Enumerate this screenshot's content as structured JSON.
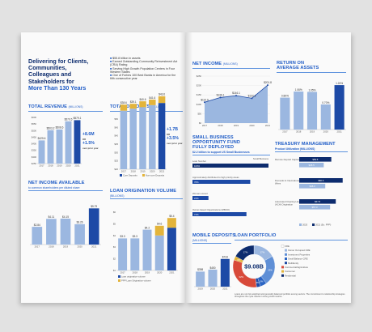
{
  "intro": {
    "title_l1": "Delivering for Clients,",
    "title_l2": "Communities,",
    "title_l3": "Colleagues and",
    "title_l4": "Stakeholders for",
    "title_l5": "More Than 130 Years",
    "bullets": [
      "$55.8 billion in assets",
      "Earned Outstanding Community Reinvestment Act (CRA) Rating",
      "Serving High Growth Population Centers in Four Western States",
      "One of Forbes 100 Best Banks in America for the fifth consecutive year"
    ]
  },
  "colors": {
    "navy": "#0d2c6e",
    "accent": "#1e5bc6",
    "bar": "#9bb7e0",
    "bar_dark": "#1d4aa6",
    "gold": "#e3b43b",
    "red": "#d84a3a"
  },
  "revenue": {
    "title": "TOTAL REVENUE",
    "unit": "(MILLIONS)",
    "stat": "+8.6M",
    "stat2": "+1.5%",
    "stat_note": "over prior year",
    "or": "OR"
  },
  "deposits": {
    "title": "TOTAL DEPOSITS",
    "unit": "(BILLIONS)",
    "stat": "+1.7B",
    "stat2": "+3.5%",
    "stat_note": "over prior year",
    "or": "OR",
    "legend1": "Core Deposits",
    "legend2": "Non-core Deposits"
  },
  "netinc_avail": {
    "title": "NET INCOME AVAILABLE",
    "subtitle": "to common shareholders per diluted share"
  },
  "loan_orig": {
    "title": "LOAN ORIGINATION VOLUME",
    "unit": "(BILLIONS)",
    "legend1": "Loan origination volume",
    "legend2": "PPP Loan Origination volume"
  },
  "net_income": {
    "title": "NET INCOME",
    "unit": "(MILLIONS)"
  },
  "roaa": {
    "title_l1": "RETURN ON",
    "title_l2": "AVERAGE ASSETS"
  },
  "sbof": {
    "title_l1": "SMALL BUSINESS",
    "title_l2": "OPPORTUNITY FUND",
    "title_l3": "FULLY DEPLOYED",
    "subtitle": "$2.2 billion to support US Small Businesses"
  },
  "treasury": {
    "title": "TREASURY MANAGEMENT",
    "subtitle": "Product Utilization",
    "unit": "(MILLIONS)"
  },
  "mobile": {
    "title": "MOBILE DEPOSITS",
    "unit": "(MILLIONS)"
  },
  "portfolio": {
    "title": "LOAN PORTFOLIO",
    "total": "$9.08B",
    "legend": [
      "CRE",
      "Owner Occupied CRE",
      "Investment Properties",
      "Small Balance CRE",
      "Multifamily",
      "Commercial/Agriculture",
      "Consumer",
      "Residential"
    ],
    "footnote": "Loans are not risk weighted and generally balanced portfolio among sectors. The commitment to relationship strategies throughout the cycle results in strong credit metrics."
  },
  "chart_data": [
    {
      "type": "bar",
      "title": "TOTAL REVENUE",
      "categories": [
        "2017",
        "2018",
        "2019",
        "2020",
        "2021"
      ],
      "values": [
        425.6,
        503.2,
        508.6,
        570.5,
        579.1
      ],
      "value_labels": [
        "$425.6",
        "$503.2",
        "$508.6",
        "$570.5",
        "$579.1"
      ],
      "y_ticks": [
        "$600",
        "$550",
        "$500",
        "$450",
        "$400",
        "$350",
        "$300",
        "$250"
      ]
    },
    {
      "type": "bar",
      "title": "TOTAL DEPOSITS",
      "categories": [
        "2017",
        "2018",
        "2019",
        "2020",
        "2021"
      ],
      "series": [
        {
          "name": "Core Deposits",
          "values": [
            35.0,
            36.2,
            37.1,
            38.3,
            39.6
          ]
        },
        {
          "name": "Non-core Deposits",
          "values": [
            3.6,
            2.9,
            3.5,
            3.3,
            4.0
          ]
        }
      ],
      "value_labels": [
        "$38.6",
        "$39.1",
        "$40.6",
        "$41.6",
        "$43.6"
      ],
      "y_ticks": [
        "$50",
        "$45",
        "$40",
        "$35",
        "$30",
        "$25",
        "$20"
      ]
    },
    {
      "type": "bar",
      "title": "NET INCOME AVAILABLE",
      "categories": [
        "2017",
        "2018",
        "2019",
        "2020",
        "2021"
      ],
      "values": [
        2.84,
        4.11,
        4.15,
        3.26,
        5.79
      ],
      "value_labels": [
        "$2.84",
        "$4.11",
        "$4.15",
        "$3.26",
        "$5.79"
      ]
    },
    {
      "type": "bar",
      "title": "LOAN ORIGINATION VOLUME",
      "categories": [
        "2017",
        "2018",
        "2019",
        "2020",
        "2021"
      ],
      "series": [
        {
          "name": "Loan origination volume",
          "values": [
            3.3,
            3.3,
            4.2,
            3.6,
            4.4
          ]
        },
        {
          "name": "PPP Loan Origination volume",
          "values": [
            0,
            0,
            0,
            1.0,
            1.0
          ]
        }
      ],
      "value_labels": [
        "$3.3",
        "$3.3",
        "$4.2",
        "$4.6",
        "$5.4"
      ],
      "y_ticks": [
        "$6",
        "$5",
        "$4",
        "$3",
        "$2",
        "$1"
      ]
    },
    {
      "type": "area",
      "title": "NET INCOME",
      "categories": [
        "2017",
        "2018",
        "2019",
        "2020",
        "2021"
      ],
      "values": [
        110.9,
        136.1,
        146.1,
        132.1,
        201.8
      ],
      "value_labels": [
        "$110.9",
        "$136.1",
        "$146.1",
        "$132.1",
        "$201.8"
      ],
      "y_ticks": [
        "$250",
        "$200",
        "$150",
        "$100",
        "$50",
        "$0"
      ]
    },
    {
      "type": "bar",
      "title": "RETURN ON AVERAGE ASSETS",
      "categories": [
        "2017",
        "2018",
        "2019",
        "2020",
        "2021"
      ],
      "values": [
        0.89,
        1.06,
        1.05,
        0.7,
        1.24
      ],
      "value_labels": [
        "0.89%",
        "1.06%",
        "1.05%",
        "0.70%",
        "1.24%"
      ]
    },
    {
      "type": "bar",
      "title": "SMALL BUSINESS OPPORTUNITY FUND",
      "categories": [
        "Loan Number",
        "Approximately distributed to high priority areas",
        "Woman owned",
        "Owner-based Organizations (MBOO)"
      ],
      "values": [
        100,
        76,
        21,
        71
      ],
      "value_labels": [
        "100%",
        "76%",
        "21%",
        "71%"
      ],
      "header_right": "Small Business"
    },
    {
      "type": "bar",
      "title": "TREASURY MANAGEMENT",
      "categories": [
        "Remote Deposit Capture",
        "Domestic & International Wires",
        "Automated Clearing House (ACH) Origination"
      ],
      "series": [
        {
          "name": "2021",
          "values": [
            59.5,
            80.6,
            67.8
          ]
        },
        {
          "name": "2020",
          "values": [
            45.5,
            48.3,
            57.3
          ]
        }
      ],
      "value_labels": [
        "$59.5",
        "$45.5",
        "$80.6",
        "$48.3",
        "$67.8",
        "$57.3"
      ],
      "legend": [
        "2020",
        "2021 (Ex. PPP)"
      ]
    },
    {
      "type": "bar",
      "title": "MOBILE DEPOSITS",
      "categories": [
        "2019",
        "2020",
        "2021"
      ],
      "values": [
        398,
        450,
        733
      ],
      "value_labels": [
        "$398",
        "$450",
        "$733"
      ]
    },
    {
      "type": "pie",
      "title": "LOAN PORTFOLIO",
      "categories": [
        "Owner Occupied CRE",
        "Investment Properties",
        "Small Balance CRE",
        "Multifamily",
        "Commercial/Agriculture",
        "Consumer",
        "Residential"
      ],
      "values": [
        17,
        23,
        5,
        3,
        32,
        3,
        17
      ],
      "value_labels": [
        "17%",
        "23%",
        "5%",
        "3%",
        "32%",
        "3%",
        "17%"
      ]
    }
  ]
}
